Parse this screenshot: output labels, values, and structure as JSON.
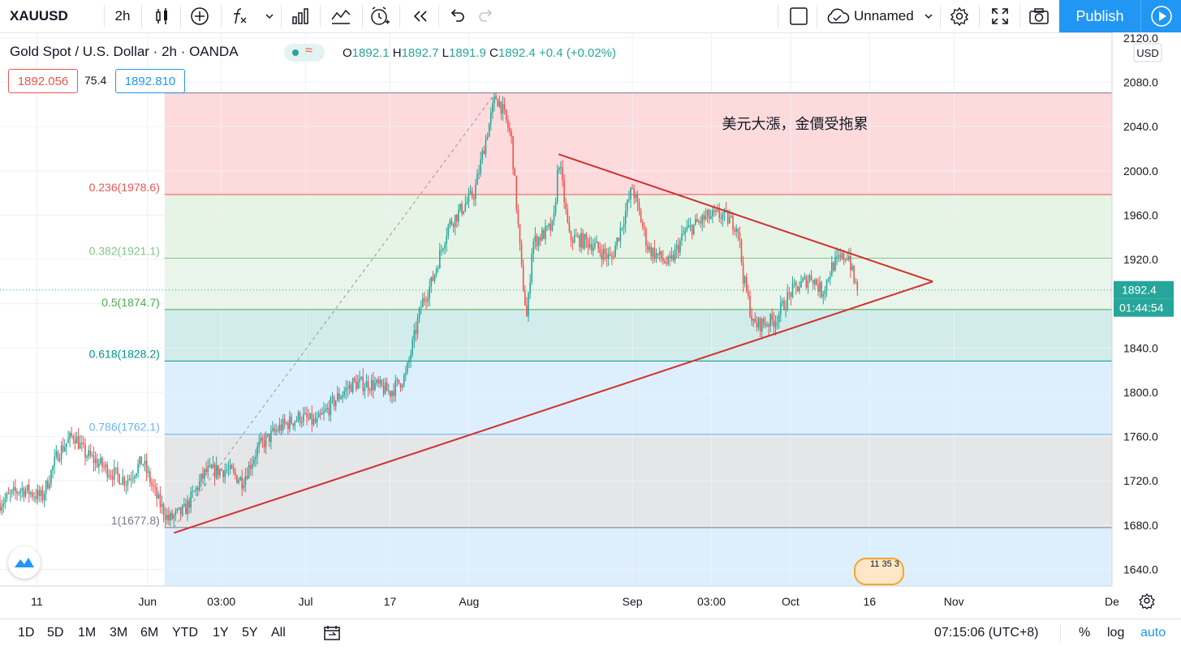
{
  "toolbar": {
    "symbol": "XAUUSD",
    "interval": "2h",
    "layout_name": "Unnamed",
    "publish_label": "Publish",
    "icons": [
      "candles-icon",
      "plus-circle-icon",
      "fx-icon",
      "chevron-down-icon",
      "bars-icon",
      "line-chart-icon",
      "alert-clock-icon",
      "replay-icon",
      "undo-icon",
      "redo-icon",
      "square-icon",
      "cloud-icon",
      "gear-icon",
      "fullscreen-icon",
      "camera-icon",
      "play-icon"
    ]
  },
  "legend": {
    "title": "Gold Spot / U.S. Dollar · 2h · OANDA",
    "o_label": "O",
    "o": "1892.1",
    "h_label": "H",
    "h": "1892.7",
    "l_label": "L",
    "l": "1891.9",
    "c_label": "C",
    "c": "1892.4",
    "change": "+0.4 (+0.02%)",
    "sell_price": "1892.056",
    "spread": "75.4",
    "buy_price": "1892.810"
  },
  "colors": {
    "up": "#26a69a",
    "down": "#ef5350",
    "accent": "#2196f3",
    "trendline": "#d32f2f"
  },
  "chart_data": {
    "type": "candlestick",
    "title": "Gold Spot / U.S. Dollar",
    "currency": "USD",
    "ylim": [
      1625,
      2125
    ],
    "y_ticks": [
      2120.0,
      2080.0,
      2040.0,
      2000.0,
      1960.0,
      1920.0,
      1880.0,
      1840.0,
      1800.0,
      1760.0,
      1720.0,
      1680.0,
      1640.0
    ],
    "x_ticks": [
      "11",
      "Jun",
      "03:00",
      "Jul",
      "17",
      "Aug",
      "Sep",
      "03:00",
      "Oct",
      "16",
      "Nov",
      "De"
    ],
    "x_range": [
      "2020-05-04",
      "2020-12-01"
    ],
    "last_price": "1892.4",
    "countdown": "01:44:54",
    "path_points": [
      [
        "2020-05-04",
        1700
      ],
      [
        "2020-05-08",
        1713
      ],
      [
        "2020-05-12",
        1705
      ],
      [
        "2020-05-15",
        1745
      ],
      [
        "2020-05-18",
        1762
      ],
      [
        "2020-05-20",
        1745
      ],
      [
        "2020-05-25",
        1728
      ],
      [
        "2020-05-28",
        1720
      ],
      [
        "2020-05-31",
        1738
      ],
      [
        "2020-06-03",
        1702
      ],
      [
        "2020-06-05",
        1685
      ],
      [
        "2020-06-08",
        1693
      ],
      [
        "2020-06-12",
        1728
      ],
      [
        "2020-06-16",
        1730
      ],
      [
        "2020-06-19",
        1720
      ],
      [
        "2020-06-22",
        1750
      ],
      [
        "2020-06-26",
        1768
      ],
      [
        "2020-06-30",
        1778
      ],
      [
        "2020-07-03",
        1772
      ],
      [
        "2020-07-07",
        1795
      ],
      [
        "2020-07-10",
        1808
      ],
      [
        "2020-07-14",
        1807
      ],
      [
        "2020-07-17",
        1800
      ],
      [
        "2020-07-20",
        1815
      ],
      [
        "2020-07-23",
        1880
      ],
      [
        "2020-07-25",
        1900
      ],
      [
        "2020-07-28",
        1950
      ],
      [
        "2020-07-31",
        1968
      ],
      [
        "2020-08-02",
        1980
      ],
      [
        "2020-08-04",
        2025
      ],
      [
        "2020-08-06",
        2067
      ],
      [
        "2020-08-07",
        2060
      ],
      [
        "2020-08-09",
        2030
      ],
      [
        "2020-08-11",
        1908
      ],
      [
        "2020-08-12",
        1865
      ],
      [
        "2020-08-13",
        1935
      ],
      [
        "2020-08-17",
        1950
      ],
      [
        "2020-08-18",
        2012
      ],
      [
        "2020-08-20",
        1940
      ],
      [
        "2020-08-24",
        1935
      ],
      [
        "2020-08-28",
        1920
      ],
      [
        "2020-08-31",
        1968
      ],
      [
        "2020-09-01",
        1985
      ],
      [
        "2020-09-04",
        1930
      ],
      [
        "2020-09-08",
        1915
      ],
      [
        "2020-09-11",
        1945
      ],
      [
        "2020-09-15",
        1958
      ],
      [
        "2020-09-18",
        1960
      ],
      [
        "2020-09-21",
        1950
      ],
      [
        "2020-09-22",
        1905
      ],
      [
        "2020-09-24",
        1860
      ],
      [
        "2020-09-28",
        1865
      ],
      [
        "2020-10-01",
        1890
      ],
      [
        "2020-10-05",
        1905
      ],
      [
        "2020-10-07",
        1890
      ],
      [
        "2020-10-09",
        1915
      ],
      [
        "2020-10-12",
        1925
      ],
      [
        "2020-10-13",
        1900
      ],
      [
        "2020-10-14",
        1892.4
      ]
    ],
    "fib_levels": [
      {
        "ratio": 0,
        "value": 2070.4,
        "label": ""
      },
      {
        "ratio": 0.236,
        "value": 1978.6,
        "label": "0.236(1978.6)"
      },
      {
        "ratio": 0.382,
        "value": 1921.1,
        "label": "0.382(1921.1)"
      },
      {
        "ratio": 0.5,
        "value": 1874.7,
        "label": "0.5(1874.7)"
      },
      {
        "ratio": 0.618,
        "value": 1828.2,
        "label": "0.618(1828.2)"
      },
      {
        "ratio": 0.786,
        "value": 1762.1,
        "label": "0.786(1762.1)"
      },
      {
        "ratio": 1,
        "value": 1677.8,
        "label": "1(1677.8)"
      }
    ],
    "trendlines": [
      {
        "from": [
          "2020-06-06",
          1673
        ],
        "to": [
          "2020-10-28",
          1900
        ]
      },
      {
        "from": [
          "2020-08-18",
          2015
        ],
        "to": [
          "2020-10-28",
          1900
        ]
      }
    ],
    "annotation": {
      "text": "美元大漲，金價受拖累",
      "at": [
        "2020-09-18",
        2038
      ]
    },
    "event_marker": "11 35 3"
  },
  "bottom": {
    "ranges": [
      "1D",
      "5D",
      "1M",
      "3M",
      "6M",
      "YTD",
      "1Y",
      "5Y",
      "All"
    ],
    "time": "07:15:06 (UTC+8)",
    "percent": "%",
    "log": "log",
    "auto": "auto"
  }
}
